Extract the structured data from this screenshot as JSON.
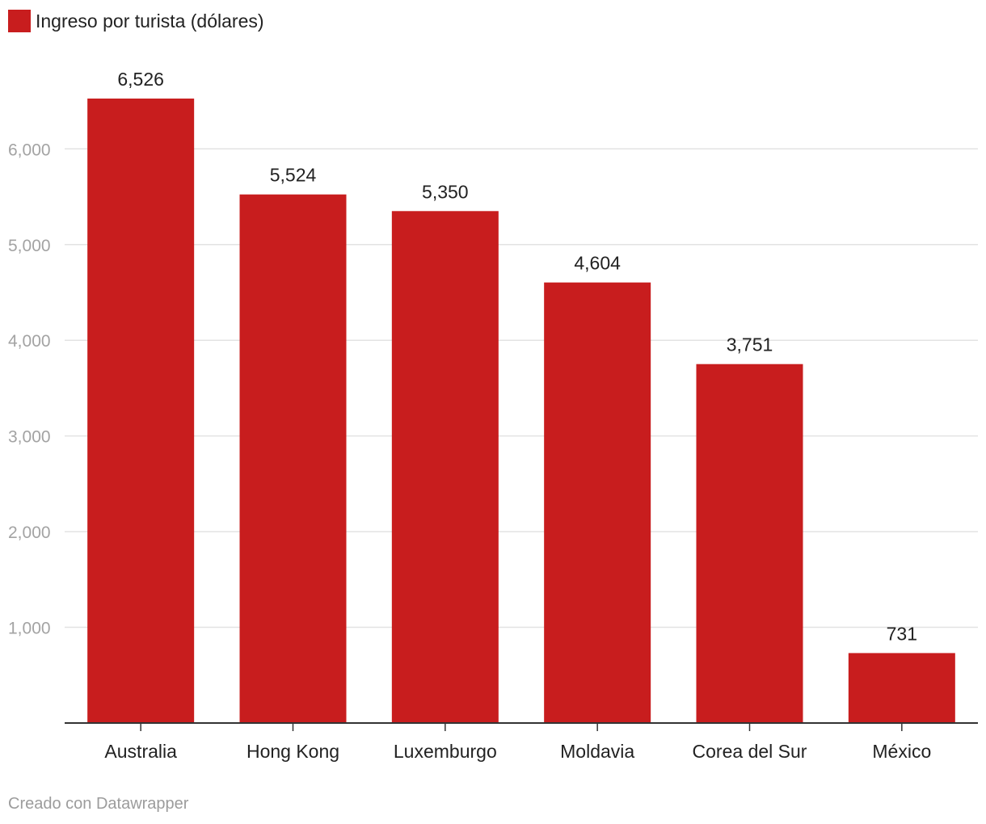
{
  "legend": {
    "label": "Ingreso por turista (dólares)"
  },
  "credit": "Creado con Datawrapper",
  "colors": {
    "bar": "#c81d1e",
    "grid": "#e3e3e3",
    "axis": "#333333"
  },
  "chart_data": {
    "type": "bar",
    "categories": [
      "Australia",
      "Hong Kong",
      "Luxemburgo",
      "Moldavia",
      "Corea del Sur",
      "México"
    ],
    "series": [
      {
        "name": "Ingreso por turista (dólares)",
        "values": [
          6526,
          5524,
          5350,
          4604,
          3751,
          731
        ]
      }
    ],
    "value_labels": [
      "6,526",
      "5,524",
      "5,350",
      "4,604",
      "3,751",
      "731"
    ],
    "y_ticks": [
      1000,
      2000,
      3000,
      4000,
      5000,
      6000
    ],
    "y_tick_labels": [
      "1,000",
      "2,000",
      "3,000",
      "4,000",
      "5,000",
      "6,000"
    ],
    "ylim": [
      0,
      6526
    ],
    "grid": true,
    "legend_position": "top-left"
  }
}
